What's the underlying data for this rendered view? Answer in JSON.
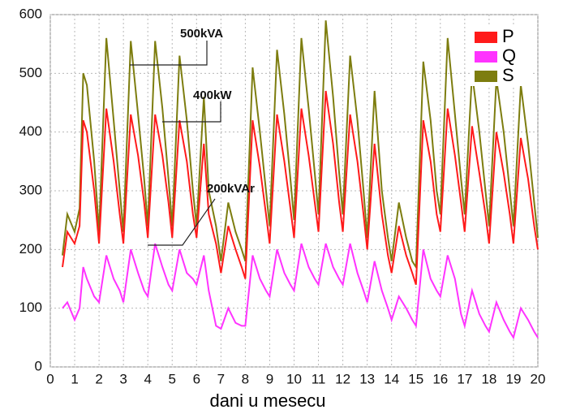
{
  "chart_data": {
    "type": "line",
    "xlabel": "dani u mesecu",
    "annotations": [
      "500kVA",
      "400kW",
      "200kVAr"
    ],
    "xlim": [
      0,
      20
    ],
    "ylim": [
      0,
      600
    ],
    "xticks": [
      0,
      1,
      2,
      3,
      4,
      5,
      6,
      7,
      8,
      9,
      10,
      11,
      12,
      13,
      14,
      15,
      16,
      17,
      18,
      19,
      20
    ],
    "yticks": [
      0,
      100,
      200,
      300,
      400,
      500,
      600
    ],
    "grid": true,
    "legend": "upper right",
    "x": [
      0.5,
      0.7,
      1.0,
      1.2,
      1.35,
      1.5,
      1.8,
      2.0,
      2.3,
      2.6,
      2.85,
      3.0,
      3.3,
      3.6,
      3.85,
      4.0,
      4.3,
      4.6,
      4.85,
      5.0,
      5.3,
      5.6,
      5.85,
      6.0,
      6.3,
      6.5,
      6.8,
      7.0,
      7.3,
      7.6,
      7.85,
      8.0,
      8.3,
      8.6,
      8.85,
      9.0,
      9.3,
      9.6,
      9.85,
      10.0,
      10.3,
      10.6,
      10.85,
      11.0,
      11.3,
      11.6,
      11.85,
      12.0,
      12.3,
      12.6,
      12.85,
      13.0,
      13.3,
      13.6,
      13.85,
      14.0,
      14.3,
      14.6,
      14.85,
      15.0,
      15.3,
      15.6,
      15.85,
      16.0,
      16.3,
      16.6,
      16.85,
      17.0,
      17.3,
      17.6,
      17.85,
      18.0,
      18.3,
      18.6,
      18.85,
      19.0,
      19.3,
      19.6,
      19.85,
      20.0
    ],
    "series": [
      {
        "name": "P",
        "color": "#ff1a1a",
        "values": [
          170,
          230,
          210,
          240,
          420,
          400,
          300,
          210,
          440,
          350,
          260,
          210,
          430,
          360,
          280,
          220,
          430,
          360,
          280,
          220,
          420,
          350,
          260,
          220,
          380,
          260,
          210,
          160,
          240,
          200,
          170,
          150,
          420,
          340,
          260,
          210,
          430,
          350,
          270,
          220,
          440,
          360,
          280,
          230,
          470,
          380,
          280,
          230,
          430,
          350,
          260,
          200,
          380,
          260,
          190,
          160,
          240,
          190,
          160,
          140,
          420,
          350,
          260,
          230,
          440,
          360,
          280,
          230,
          410,
          330,
          260,
          210,
          400,
          330,
          260,
          210,
          390,
          320,
          240,
          200
        ]
      },
      {
        "name": "Q",
        "color": "#ff33ff",
        "values": [
          100,
          110,
          80,
          100,
          170,
          150,
          120,
          110,
          190,
          150,
          130,
          110,
          200,
          160,
          130,
          120,
          210,
          170,
          140,
          130,
          200,
          160,
          150,
          140,
          190,
          130,
          70,
          65,
          100,
          75,
          70,
          70,
          190,
          150,
          130,
          120,
          200,
          160,
          140,
          130,
          210,
          170,
          150,
          140,
          210,
          170,
          150,
          140,
          210,
          160,
          130,
          110,
          180,
          130,
          100,
          80,
          120,
          100,
          80,
          70,
          200,
          150,
          130,
          120,
          190,
          150,
          90,
          70,
          130,
          90,
          70,
          60,
          110,
          80,
          60,
          50,
          100,
          80,
          60,
          50
        ]
      },
      {
        "name": "S",
        "color": "#7d7d0f",
        "values": [
          190,
          260,
          230,
          270,
          500,
          480,
          350,
          230,
          560,
          420,
          300,
          230,
          555,
          430,
          320,
          240,
          555,
          440,
          320,
          240,
          530,
          420,
          300,
          240,
          460,
          300,
          240,
          180,
          280,
          230,
          200,
          180,
          510,
          400,
          300,
          240,
          540,
          430,
          320,
          250,
          560,
          440,
          330,
          260,
          590,
          460,
          330,
          260,
          530,
          420,
          300,
          220,
          470,
          300,
          220,
          180,
          280,
          220,
          180,
          170,
          520,
          420,
          300,
          260,
          560,
          430,
          320,
          260,
          500,
          400,
          300,
          240,
          490,
          400,
          300,
          240,
          480,
          380,
          280,
          220
        ]
      }
    ]
  }
}
